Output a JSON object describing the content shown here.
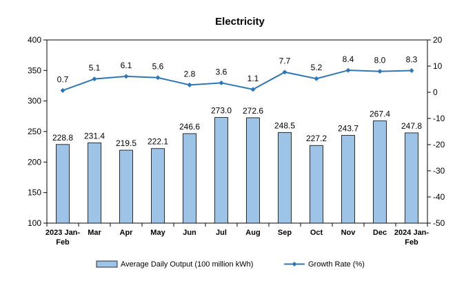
{
  "chart_data": {
    "type": "bar",
    "title": "Electricity",
    "categories": [
      [
        "2023 Jan-",
        "Feb"
      ],
      [
        "Mar"
      ],
      [
        "Apr"
      ],
      [
        "May"
      ],
      [
        "Jun"
      ],
      [
        "Jul"
      ],
      [
        "Aug"
      ],
      [
        "Sep"
      ],
      [
        "Oct"
      ],
      [
        "Nov"
      ],
      [
        "Dec"
      ],
      [
        "2024 Jan-",
        "Feb"
      ]
    ],
    "series": [
      {
        "name": "Average Daily Output (100 million kWh)",
        "type": "bar",
        "axis": "left",
        "values": [
          228.8,
          231.4,
          219.5,
          222.1,
          246.6,
          273.0,
          272.6,
          248.5,
          227.2,
          243.7,
          267.4,
          247.8
        ],
        "labels": [
          "228.8",
          "231.4",
          "219.5",
          "222.1",
          "246.6",
          "273.0",
          "272.6",
          "248.5",
          "227.2",
          "243.7",
          "267.4",
          "247.8"
        ],
        "color": "#9dc3e6",
        "stroke": "#000000"
      },
      {
        "name": "Growth Rate (%)",
        "type": "line",
        "axis": "right",
        "values": [
          0.7,
          5.1,
          6.1,
          5.6,
          2.8,
          3.6,
          1.1,
          7.7,
          5.2,
          8.4,
          8.0,
          8.3
        ],
        "labels": [
          "0.7",
          "5.1",
          "6.1",
          "5.6",
          "2.8",
          "3.6",
          "1.1",
          "7.7",
          "5.2",
          "8.4",
          "8.0",
          "8.3"
        ],
        "color": "#2e75b6"
      }
    ],
    "y_left": {
      "min": 100,
      "max": 400,
      "ticks": [
        "100",
        "150",
        "200",
        "250",
        "300",
        "350",
        "400"
      ]
    },
    "y_right": {
      "min": -50,
      "max": 20,
      "ticks": [
        "-50",
        "-40",
        "-30",
        "-20",
        "-10",
        "0",
        "10",
        "20"
      ]
    },
    "grid": false,
    "legend": "bottom"
  }
}
